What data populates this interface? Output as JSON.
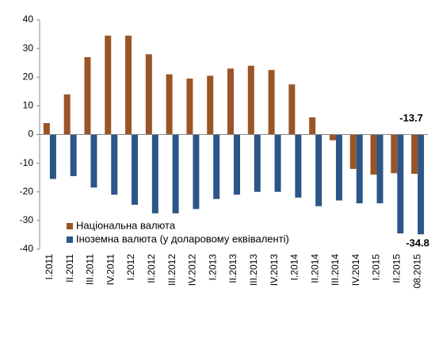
{
  "chart_data": {
    "type": "bar",
    "categories": [
      "I.2011",
      "II.2011",
      "III.2011",
      "IV.2011",
      "I.2012",
      "II.2012",
      "III.2012",
      "IV.2012",
      "I.2013",
      "II.2013",
      "III.2013",
      "IV.2013",
      "I.2014",
      "II.2014",
      "III.2014",
      "IV.2014",
      "I.2015",
      "II.2015",
      "08.2015"
    ],
    "series": [
      {
        "name": "Національна валюта",
        "color": "#9a5526",
        "values": [
          4,
          14,
          27,
          34.5,
          34.5,
          28,
          21,
          19.5,
          20.5,
          23,
          24,
          22.5,
          17.5,
          6,
          -2,
          -12,
          -14,
          -13.5,
          -13.7
        ]
      },
      {
        "name": "Іноземна валюта (у доларовому еквіваленті)",
        "color": "#2b5687",
        "values": [
          -15.5,
          -14.5,
          -18.5,
          -21,
          -24.5,
          -27.5,
          -27.5,
          -26,
          -22.5,
          -21,
          -20,
          -20,
          -22,
          -25,
          -23,
          -24,
          -24,
          -34.5,
          -34.8
        ]
      }
    ],
    "ylim": [
      -40,
      40
    ],
    "yticks": [
      -40,
      -30,
      -20,
      -10,
      0,
      10,
      20,
      30,
      40
    ],
    "grid": false,
    "label_last": true,
    "legend": "bottom-left"
  }
}
